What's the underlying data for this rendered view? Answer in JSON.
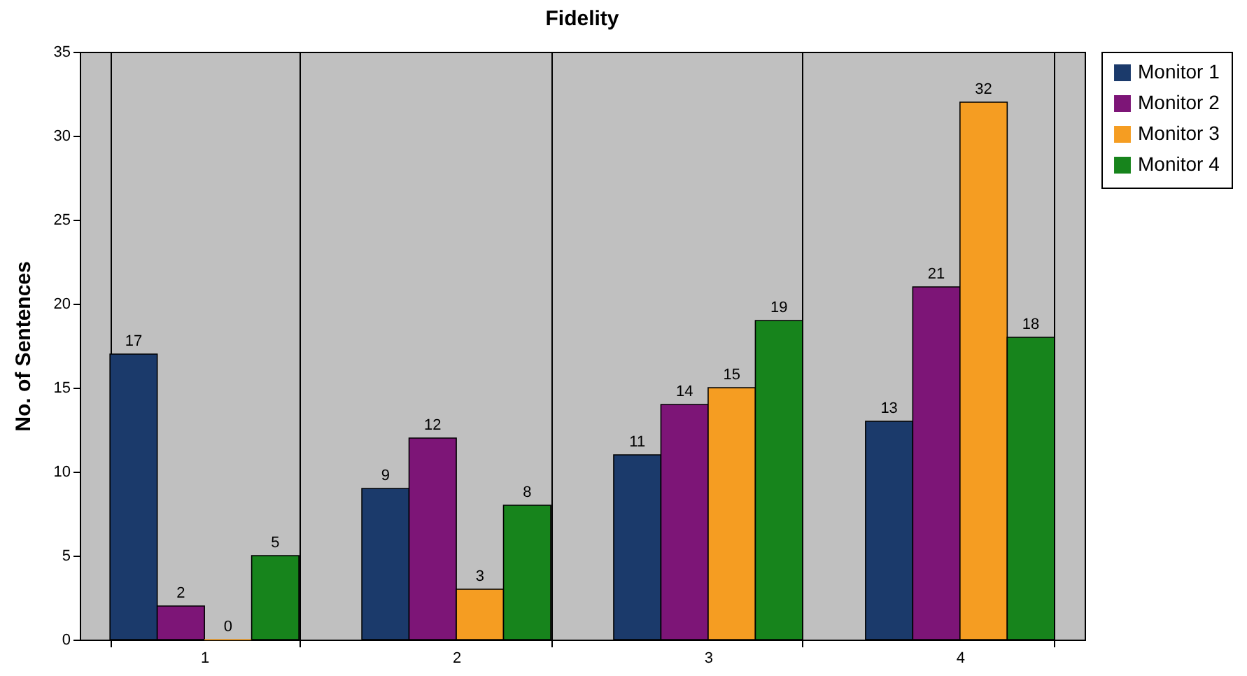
{
  "chart_data": {
    "type": "bar",
    "title": "Fidelity",
    "ylabel": "No. of Sentences",
    "categories": [
      "1",
      "2",
      "3",
      "4"
    ],
    "series": [
      {
        "name": "Monitor 1",
        "color": "#1b3a6b",
        "values": [
          17,
          9,
          11,
          13
        ]
      },
      {
        "name": "Monitor 2",
        "color": "#7d1577",
        "values": [
          2,
          12,
          14,
          21
        ]
      },
      {
        "name": "Monitor 3",
        "color": "#f59d22",
        "values": [
          0,
          3,
          15,
          32
        ]
      },
      {
        "name": "Monitor 4",
        "color": "#17841c",
        "values": [
          5,
          8,
          19,
          18
        ]
      }
    ],
    "ylim": [
      0,
      35
    ],
    "yticks": [
      0,
      5,
      10,
      15,
      20,
      25,
      30,
      35
    ],
    "grid": "x",
    "legend": "right",
    "data_labels": true
  }
}
